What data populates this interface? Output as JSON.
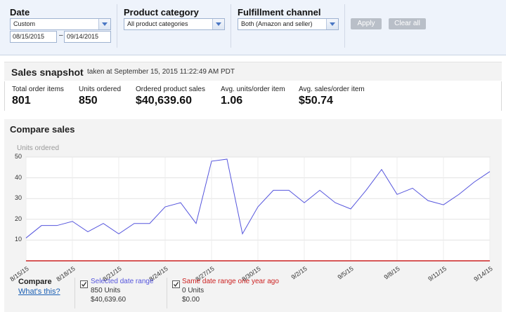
{
  "filters": {
    "date": {
      "label": "Date",
      "selected": "Custom",
      "from": "08/15/2015",
      "to": "09/14/2015",
      "separator": "–"
    },
    "product_category": {
      "label": "Product category",
      "selected": "All product categories"
    },
    "fulfillment": {
      "label": "Fulfillment channel",
      "selected": "Both (Amazon and seller)"
    },
    "apply_label": "Apply",
    "clear_label": "Clear all"
  },
  "snapshot": {
    "title": "Sales snapshot",
    "subtitle": "taken at September 15, 2015 11:22:49 AM PDT",
    "metrics": [
      {
        "label": "Total order items",
        "value": "801"
      },
      {
        "label": "Units ordered",
        "value": "850"
      },
      {
        "label": "Ordered product sales",
        "value": "$40,639.60"
      },
      {
        "label": "Avg. units/order item",
        "value": "1.06"
      },
      {
        "label": "Avg. sales/order item",
        "value": "$50.74"
      }
    ]
  },
  "compare": {
    "title": "Compare sales",
    "legend_heading": "Compare",
    "whats_this": "What's this?",
    "selected": {
      "label": "Selected date range",
      "units": "850 Units",
      "sales": "$40,639.60",
      "color": "#5555dd"
    },
    "last_year": {
      "label": "Same date range one year ago",
      "units": "0 Units",
      "sales": "$0.00",
      "color": "#cc2222"
    }
  },
  "chart_data": {
    "type": "line",
    "ylabel": "Units ordered",
    "ylim": [
      0,
      50
    ],
    "yticks": [
      10,
      20,
      30,
      40,
      50
    ],
    "grid": true,
    "x_tick_labels": [
      "8/15/15",
      "8/18/15",
      "8/21/15",
      "8/24/15",
      "8/27/15",
      "8/30/15",
      "9/2/15",
      "9/5/15",
      "9/8/15",
      "9/11/15",
      "9/14/15"
    ],
    "x": [
      "8/15/15",
      "8/16/15",
      "8/17/15",
      "8/18/15",
      "8/19/15",
      "8/20/15",
      "8/21/15",
      "8/22/15",
      "8/23/15",
      "8/24/15",
      "8/25/15",
      "8/26/15",
      "8/27/15",
      "8/28/15",
      "8/29/15",
      "8/30/15",
      "8/31/15",
      "9/1/15",
      "9/2/15",
      "9/3/15",
      "9/4/15",
      "9/5/15",
      "9/6/15",
      "9/7/15",
      "9/8/15",
      "9/9/15",
      "9/10/15",
      "9/11/15",
      "9/12/15",
      "9/13/15",
      "9/14/15"
    ],
    "series": [
      {
        "name": "Selected date range",
        "color": "#5555dd",
        "values": [
          11,
          17,
          17,
          19,
          14,
          18,
          13,
          18,
          18,
          26,
          28,
          18,
          48,
          49,
          13,
          26,
          34,
          34,
          28,
          34,
          28,
          25,
          34,
          44,
          32,
          35,
          29,
          27,
          32,
          38,
          43
        ]
      },
      {
        "name": "Same date range one year ago",
        "color": "#cc2222",
        "values": [
          0,
          0,
          0,
          0,
          0,
          0,
          0,
          0,
          0,
          0,
          0,
          0,
          0,
          0,
          0,
          0,
          0,
          0,
          0,
          0,
          0,
          0,
          0,
          0,
          0,
          0,
          0,
          0,
          0,
          0,
          0
        ]
      }
    ]
  }
}
